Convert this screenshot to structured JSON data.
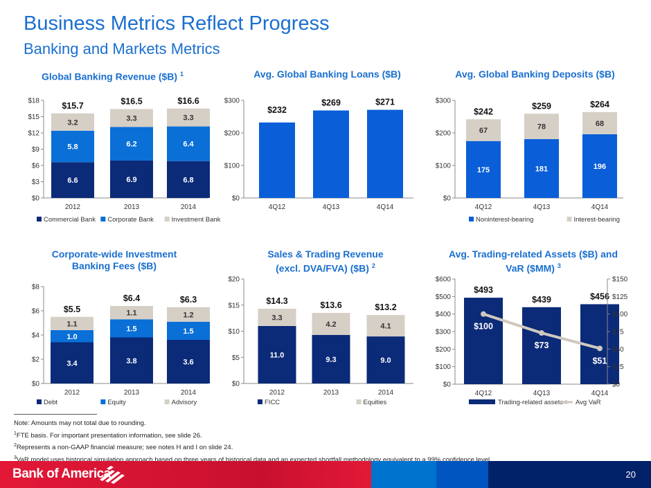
{
  "header": {
    "title": "Business Metrics Reflect Progress",
    "subtitle": "Banking and Markets Metrics"
  },
  "colors": {
    "navy": "#0b2a78",
    "blue": "#0a6fd6",
    "loan_blue": "#0a5ed8",
    "gray": "#d6cfc6",
    "title": "#1a6fcf",
    "var_line": "#cfc8bf"
  },
  "chart_data": [
    {
      "type": "bar",
      "stacked": true,
      "title": "Global Banking Revenue ($B)",
      "footnote": "1",
      "categories": [
        "2012",
        "2013",
        "2014"
      ],
      "ylim": [
        0,
        18
      ],
      "ystep": 3,
      "yprefix": "$",
      "series": [
        {
          "name": "Commercial Bank",
          "values": [
            6.6,
            6.9,
            6.8
          ],
          "color": "#0b2a78"
        },
        {
          "name": "Corporate Bank",
          "values": [
            5.8,
            6.2,
            6.4
          ],
          "color": "#0a6fd6"
        },
        {
          "name": "Investment Bank",
          "values": [
            3.2,
            3.3,
            3.3
          ],
          "color": "#d6cfc6"
        }
      ],
      "totals": [
        "$15.7",
        "$16.5",
        "$16.6"
      ],
      "legend": "bottom"
    },
    {
      "type": "bar",
      "title": "Avg. Global Banking Loans ($B)",
      "categories": [
        "4Q12",
        "4Q13",
        "4Q14"
      ],
      "ylim": [
        0,
        300
      ],
      "ystep": 100,
      "yprefix": "$",
      "series": [
        {
          "values": [
            232,
            269,
            271
          ],
          "color": "#0a5ed8"
        }
      ],
      "totals": [
        "$232",
        "$269",
        "$271"
      ]
    },
    {
      "type": "bar",
      "stacked": true,
      "title": "Avg. Global Banking Deposits ($B)",
      "categories": [
        "4Q12",
        "4Q13",
        "4Q14"
      ],
      "ylim": [
        0,
        300
      ],
      "ystep": 100,
      "yprefix": "$",
      "series": [
        {
          "name": "Noninterest-bearing",
          "values": [
            175,
            181,
            196
          ],
          "color": "#0a5ed8"
        },
        {
          "name": "Interest-bearing",
          "values": [
            67,
            78,
            68
          ],
          "color": "#d6cfc6"
        }
      ],
      "totals": [
        "$242",
        "$259",
        "$264"
      ],
      "legend": "bottom"
    },
    {
      "type": "bar",
      "stacked": true,
      "title": "Corporate-wide Investment Banking Fees ($B)",
      "categories": [
        "2012",
        "2013",
        "2014"
      ],
      "ylim": [
        0,
        8
      ],
      "ystep": 2,
      "yprefix": "$",
      "series": [
        {
          "name": "Debt",
          "values": [
            3.4,
            3.8,
            3.6
          ],
          "color": "#0b2a78"
        },
        {
          "name": "Equity",
          "values": [
            1.0,
            1.5,
            1.5
          ],
          "color": "#0a6fd6"
        },
        {
          "name": "Advisory",
          "values": [
            1.1,
            1.1,
            1.2
          ],
          "color": "#d6cfc6"
        }
      ],
      "totals": [
        "$5.5",
        "$6.4",
        "$6.3"
      ],
      "legend": "bottom"
    },
    {
      "type": "bar",
      "stacked": true,
      "title": "Sales & Trading Revenue (excl. DVA/FVA) ($B)",
      "footnote": "2",
      "categories": [
        "2012",
        "2013",
        "2014"
      ],
      "ylim": [
        0,
        20
      ],
      "ystep": 5,
      "yprefix": "$",
      "series": [
        {
          "name": "FICC",
          "values": [
            11.0,
            9.3,
            9.0
          ],
          "color": "#0b2a78"
        },
        {
          "name": "Equities",
          "values": [
            3.3,
            4.2,
            4.1
          ],
          "color": "#d6cfc6"
        }
      ],
      "totals": [
        "$14.3",
        "$13.6",
        "$13.2"
      ],
      "legend": "bottom"
    },
    {
      "type": "bar+line",
      "title": "Avg. Trading-related Assets ($B) and VaR ($MM)",
      "footnote": "3",
      "categories": [
        "4Q12",
        "4Q13",
        "4Q14"
      ],
      "ylim": [
        0,
        600
      ],
      "ystep": 100,
      "y2lim": [
        0,
        150
      ],
      "y2step": 25,
      "yprefix": "$",
      "series": [
        {
          "name": "Trading-related assets",
          "values": [
            493,
            439,
            456
          ],
          "color": "#0b2a78"
        },
        {
          "name": "Avg VaR",
          "values": [
            100,
            73,
            51
          ],
          "color": "#cfc8bf",
          "axis": "right",
          "type": "line"
        }
      ],
      "totals": [
        "$493",
        "$439",
        "$456"
      ],
      "line_labels": [
        "$100",
        "$73",
        "$51"
      ],
      "legend": "bottom"
    }
  ],
  "notes": [
    "Note: Amounts may not total due to rounding.",
    "FTE basis. For important presentation information, see slide 26.",
    "Represents a non-GAAP financial measure; see notes H and I on slide 24.",
    "VaR model uses historical simulation approach based on three years of historical data and an expected shortfall methodology equivalent to a 99% confidence level."
  ],
  "note_marks": [
    "1",
    "2",
    "3"
  ],
  "footer": {
    "logo": "Bank of America",
    "page": "20"
  }
}
